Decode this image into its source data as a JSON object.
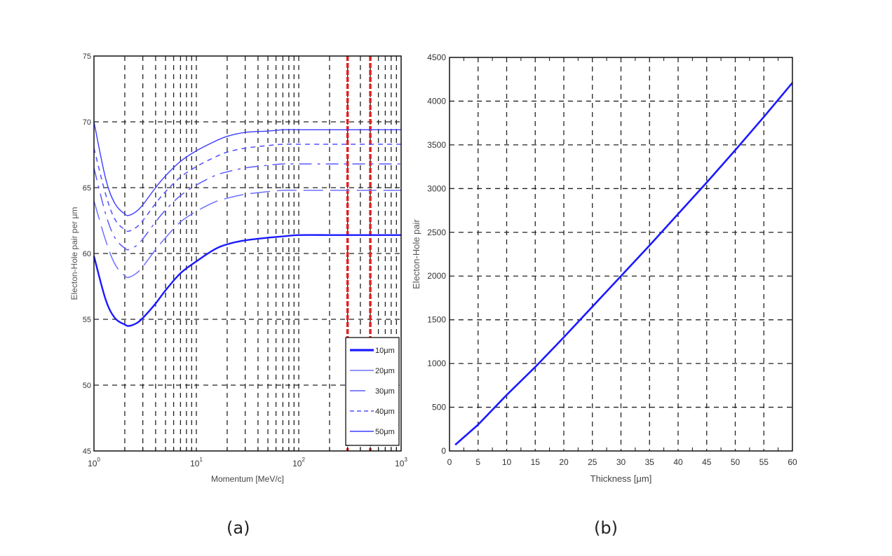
{
  "figure": {
    "panel_a_label": "(a)",
    "panel_b_label": "(b)"
  },
  "chart_data": [
    {
      "type": "line",
      "panel": "(a)",
      "title": "",
      "xlabel": "Momentum [MeV/c]",
      "ylabel": "Electon-Hole pair per μm",
      "xscale": "log",
      "xlim": [
        1,
        1000
      ],
      "ylim": [
        45,
        75
      ],
      "xticks": [
        1,
        10,
        100,
        1000
      ],
      "xtick_labels": [
        "10^0",
        "10^1",
        "10^2",
        "10^3"
      ],
      "yticks": [
        45,
        50,
        55,
        60,
        65,
        70,
        75
      ],
      "ytick_labels": [
        "45",
        "50",
        "55",
        "60",
        "65",
        "70",
        "75"
      ],
      "grid": true,
      "legend_position": "lower right",
      "legend": [
        "10μm",
        "20μm",
        "30μm",
        "40μm",
        "50μm"
      ],
      "x": [
        1,
        1.3,
        1.6,
        2,
        2.2,
        2.6,
        3,
        4,
        5,
        7,
        10,
        15,
        20,
        30,
        50,
        70,
        100,
        200,
        300,
        500,
        1000
      ],
      "series": [
        {
          "name": "10μm",
          "style": "solid-thick",
          "color": "#1a1aff",
          "values": [
            59.8,
            56.5,
            55.1,
            54.6,
            54.5,
            54.7,
            55.1,
            56.2,
            57.2,
            58.5,
            59.4,
            60.3,
            60.7,
            61.0,
            61.2,
            61.3,
            61.4,
            61.4,
            61.4,
            61.4,
            61.4
          ]
        },
        {
          "name": "20μm",
          "style": "long-dash",
          "color": "#6f6fff",
          "values": [
            64.0,
            61.0,
            59.2,
            58.3,
            58.2,
            58.5,
            59.0,
            60.3,
            61.2,
            62.4,
            63.2,
            63.9,
            64.2,
            64.5,
            64.7,
            64.8,
            64.8,
            64.8,
            64.8,
            64.8,
            64.8
          ]
        },
        {
          "name": "30μm",
          "style": "dash-dot",
          "color": "#5a5aff",
          "values": [
            66.5,
            63.0,
            61.2,
            60.4,
            60.3,
            60.6,
            61.1,
            62.4,
            63.3,
            64.4,
            65.2,
            65.9,
            66.2,
            66.5,
            66.7,
            66.8,
            66.8,
            66.8,
            66.8,
            66.8,
            66.8
          ]
        },
        {
          "name": "40μm",
          "style": "short-dash",
          "color": "#5050ff",
          "values": [
            68.0,
            64.5,
            62.6,
            61.8,
            61.7,
            62.0,
            62.5,
            63.8,
            64.7,
            65.8,
            66.6,
            67.3,
            67.7,
            68.0,
            68.2,
            68.3,
            68.3,
            68.3,
            68.3,
            68.3,
            68.3
          ]
        },
        {
          "name": "50μm",
          "style": "solid-thin",
          "color": "#3c3cff",
          "values": [
            70.0,
            65.7,
            63.8,
            63.0,
            62.9,
            63.2,
            63.7,
            65.0,
            65.9,
            67.0,
            67.8,
            68.5,
            68.9,
            69.2,
            69.3,
            69.4,
            69.4,
            69.4,
            69.4,
            69.4,
            69.4
          ]
        }
      ],
      "annotations": [
        {
          "type": "vertical-line",
          "x": 300,
          "color": "#e02020",
          "style": "dashed"
        },
        {
          "type": "vertical-line",
          "x": 500,
          "color": "#e02020",
          "style": "dashed"
        }
      ]
    },
    {
      "type": "line",
      "panel": "(b)",
      "title": "",
      "xlabel": "Thickness [μm]",
      "ylabel": "Electon-Hole pair",
      "xlim": [
        0,
        60
      ],
      "ylim": [
        0,
        4500
      ],
      "xticks": [
        0,
        5,
        10,
        15,
        20,
        25,
        30,
        35,
        40,
        45,
        50,
        55,
        60
      ],
      "xtick_labels": [
        "0",
        "5",
        "10",
        "15",
        "20",
        "25",
        "30",
        "35",
        "40",
        "45",
        "50",
        "55",
        "60"
      ],
      "yticks": [
        0,
        500,
        1000,
        1500,
        2000,
        2500,
        3000,
        3500,
        4000,
        4500
      ],
      "ytick_labels": [
        "0",
        "500",
        "1000",
        "1500",
        "2000",
        "2500",
        "3000",
        "3500",
        "4000",
        "4500"
      ],
      "grid": true,
      "x": [
        1,
        5,
        10,
        15,
        20,
        25,
        30,
        35,
        40,
        45,
        50,
        55,
        60
      ],
      "series": [
        {
          "name": "Electron-Hole pair",
          "color": "#1a1aff",
          "values": [
            70,
            300,
            640,
            960,
            1300,
            1650,
            2000,
            2350,
            2710,
            3070,
            3440,
            3820,
            4210
          ]
        }
      ]
    }
  ]
}
